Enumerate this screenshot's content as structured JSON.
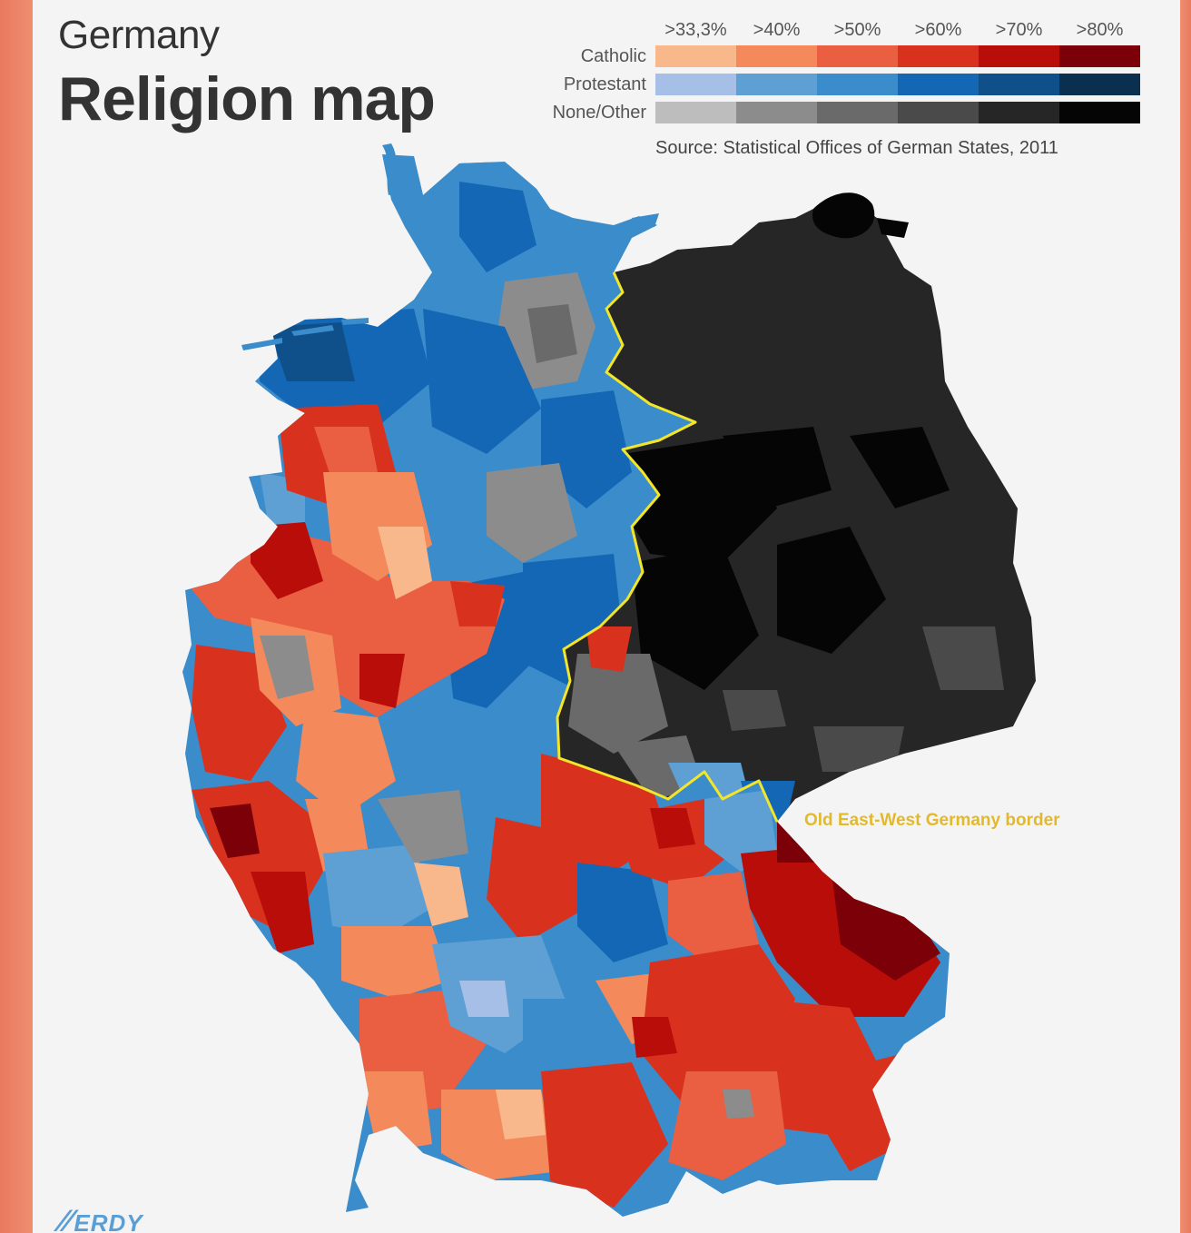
{
  "subtitle": "Germany",
  "title": "Religion map",
  "legend": {
    "thresholds": [
      ">33,3%",
      ">40%",
      ">50%",
      ">60%",
      ">70%",
      ">80%"
    ],
    "rows": [
      {
        "label": "Catholic",
        "colors": [
          "#f8b88c",
          "#f4895b",
          "#ea5e42",
          "#d8321f",
          "#b90d0a",
          "#7c0008"
        ]
      },
      {
        "label": "Protestant",
        "colors": [
          "#a6bfe6",
          "#5ea0d3",
          "#3a8cca",
          "#1467b4",
          "#0f4f8a",
          "#0b304f"
        ]
      },
      {
        "label": "None/Other",
        "colors": [
          "#bdbdbd",
          "#8c8c8c",
          "#6a6a6a",
          "#4a4a4a",
          "#262626",
          "#050505"
        ]
      }
    ]
  },
  "source": "Source: Statistical Offices of German States, 2011",
  "border_label": "Old East-West Germany border",
  "border_color": "#f2e52a",
  "logo_text": "ERDY"
}
